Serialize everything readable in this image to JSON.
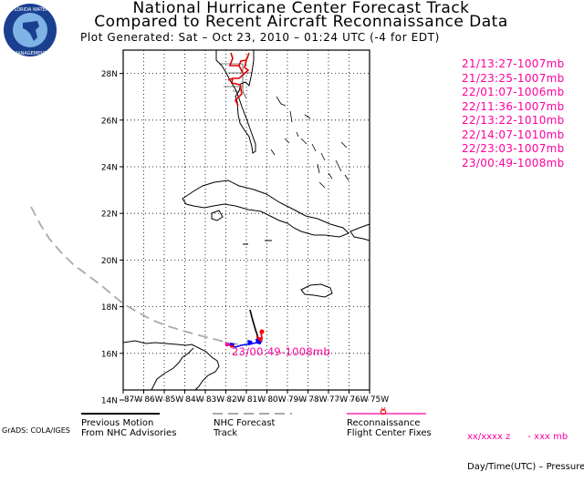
{
  "header": {
    "line1": "National Hurricane Center Forecast Track",
    "line2": "Compared to Recent Aircraft Reconnaissance Data",
    "line3": "Plot Generated:  Sat – Oct 23, 2010 – 01:24 UTC  (-4 for EDT)"
  },
  "logo": {
    "text": "FLORIDA WATER MANAGEMENT",
    "colors": {
      "ring": "#1a3f8f",
      "inner": "#7fb2e5"
    }
  },
  "recon_fixes": [
    "21/13:27-1007mb",
    "21/23:25-1007mb",
    "22/01:07-1006mb",
    "22/11:36-1007mb",
    "22/13:22-1010mb",
    "22/14:07-1010mb",
    "22/23:03-1007mb",
    "23/00:49-1008mb"
  ],
  "map": {
    "lat_labels": [
      "28N",
      "26N",
      "24N",
      "22N",
      "20N",
      "18N",
      "16N",
      "14N"
    ],
    "lon_labels": [
      "87W",
      "86W",
      "85W",
      "84W",
      "83W",
      "82W",
      "81W",
      "80W",
      "79W",
      "78W",
      "77W",
      "76W",
      "75W"
    ],
    "latest_fix_label": "23/00:49-1008mb",
    "colors": {
      "recon": "#ff00a0",
      "forecast": "#aaaaaa",
      "motion": "#000000",
      "blue": "#0000ff",
      "red": "#ff0000"
    }
  },
  "legend": {
    "previous_motion": [
      "Previous Motion",
      "From NHC Advisories"
    ],
    "forecast_track": [
      "NHC Forecast",
      "Track"
    ],
    "recon": [
      "Reconnaissance",
      "Flight Center Fixes"
    ],
    "key": [
      "xx/xxxx z      - xxx mb",
      "Day/Time(UTC) – Pressure"
    ]
  },
  "credit": "GrADS: COLA/IGES"
}
